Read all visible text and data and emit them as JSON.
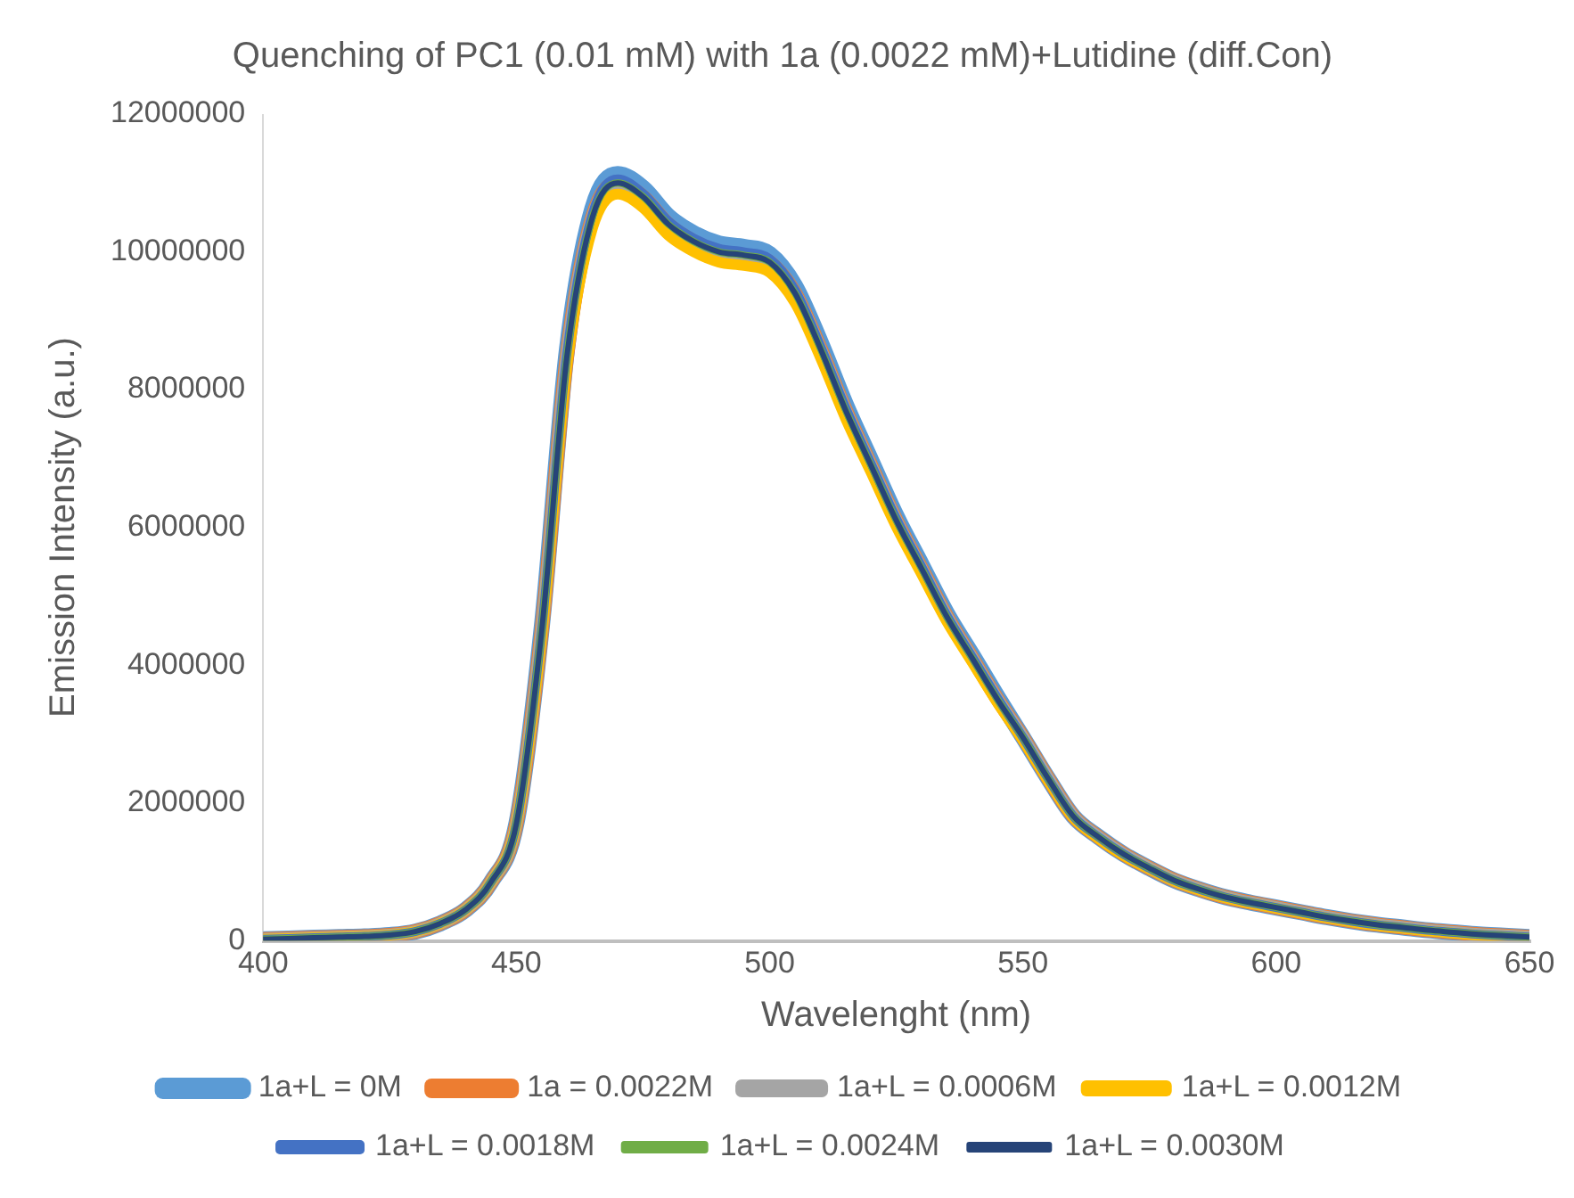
{
  "chart_data": {
    "type": "line",
    "title": "Quenching of PC1 (0.01 mM) with 1a (0.0022 mM)+Lutidine (diff.Con)",
    "xlabel": "Wavelenght (nm)",
    "ylabel": "Emission Intensity (a.u.)",
    "x": [
      400,
      405,
      410,
      415,
      420,
      425,
      430,
      435,
      440,
      445,
      450,
      455,
      460,
      465,
      470,
      475,
      480,
      485,
      490,
      495,
      500,
      505,
      510,
      515,
      520,
      525,
      530,
      535,
      540,
      545,
      550,
      555,
      560,
      565,
      570,
      575,
      580,
      585,
      590,
      595,
      600,
      605,
      610,
      615,
      620,
      625,
      630,
      635,
      640,
      645,
      650
    ],
    "xlim": [
      400,
      650
    ],
    "xticks": [
      400,
      450,
      500,
      550,
      600,
      650
    ],
    "ylim": [
      0,
      12000000
    ],
    "yticks": [
      0,
      2000000,
      4000000,
      6000000,
      8000000,
      10000000,
      12000000
    ],
    "grid": false,
    "legend": "bottom",
    "marker": "none",
    "line_style": "solid",
    "series": [
      {
        "name": "1a+L = 0M",
        "color": "#5b9bd5",
        "values": [
          20000,
          30000,
          40000,
          50000,
          60000,
          80000,
          130000,
          250000,
          450000,
          850000,
          1700000,
          4550000,
          8600000,
          10630000,
          11130000,
          10930000,
          10520000,
          10270000,
          10120000,
          10070000,
          9970000,
          9510000,
          8700000,
          7790000,
          6980000,
          6170000,
          5460000,
          4750000,
          4150000,
          3540000,
          2950000,
          2350000,
          1800000,
          1500000,
          1250000,
          1050000,
          870000,
          740000,
          630000,
          550000,
          480000,
          410000,
          340000,
          280000,
          230000,
          190000,
          150000,
          120000,
          90000,
          70000,
          50000
        ]
      },
      {
        "name": "1a = 0.0022M",
        "color": "#ed7d31",
        "values": [
          20000,
          30000,
          40000,
          50000,
          60000,
          80000,
          130000,
          250000,
          450000,
          850000,
          1700000,
          4500000,
          8500000,
          10500000,
          11000000,
          10800000,
          10400000,
          10150000,
          10000000,
          9950000,
          9850000,
          9400000,
          8600000,
          7700000,
          6900000,
          6100000,
          5400000,
          4700000,
          4100000,
          3500000,
          2950000,
          2350000,
          1800000,
          1500000,
          1250000,
          1050000,
          870000,
          740000,
          630000,
          550000,
          480000,
          410000,
          340000,
          280000,
          230000,
          190000,
          150000,
          120000,
          90000,
          70000,
          50000
        ]
      },
      {
        "name": "1a+L = 0.0006M",
        "color": "#a5a5a5",
        "values": [
          20000,
          30000,
          40000,
          50000,
          60000,
          80000,
          130000,
          250000,
          450000,
          850000,
          1700000,
          4500000,
          8500000,
          10500000,
          11000000,
          10800000,
          10400000,
          10150000,
          10000000,
          9950000,
          9850000,
          9400000,
          8600000,
          7700000,
          6900000,
          6100000,
          5400000,
          4700000,
          4100000,
          3500000,
          2950000,
          2350000,
          1800000,
          1500000,
          1250000,
          1050000,
          870000,
          740000,
          630000,
          550000,
          480000,
          410000,
          340000,
          280000,
          230000,
          190000,
          150000,
          120000,
          90000,
          70000,
          50000
        ]
      },
      {
        "name": "1a+L = 0.0012M",
        "color": "#ffc000",
        "values": [
          20000,
          30000,
          40000,
          50000,
          60000,
          80000,
          130000,
          250000,
          450000,
          850000,
          1700000,
          4430000,
          8370000,
          10340000,
          10840000,
          10640000,
          10240000,
          10000000,
          9850000,
          9800000,
          9700000,
          9260000,
          8470000,
          7580000,
          6800000,
          6010000,
          5320000,
          4630000,
          4040000,
          3450000,
          2910000,
          2320000,
          1780000,
          1480000,
          1230000,
          1040000,
          860000,
          730000,
          620000,
          540000,
          470000,
          400000,
          330000,
          270000,
          220000,
          180000,
          140000,
          110000,
          80000,
          60000,
          40000
        ]
      },
      {
        "name": "1a+L = 0.0018M",
        "color": "#4472c4",
        "values": [
          20000,
          30000,
          40000,
          50000,
          60000,
          80000,
          130000,
          250000,
          450000,
          850000,
          1700000,
          4520000,
          8540000,
          10550000,
          11060000,
          10850000,
          10450000,
          10200000,
          10050000,
          10000000,
          9900000,
          9450000,
          8640000,
          7740000,
          6930000,
          6130000,
          5430000,
          4720000,
          4120000,
          3520000,
          2950000,
          2350000,
          1800000,
          1500000,
          1250000,
          1050000,
          870000,
          740000,
          630000,
          550000,
          480000,
          410000,
          340000,
          280000,
          230000,
          190000,
          150000,
          120000,
          90000,
          70000,
          50000
        ]
      },
      {
        "name": "1a+L = 0.0024M",
        "color": "#70ad47",
        "values": [
          20000,
          30000,
          40000,
          50000,
          60000,
          80000,
          130000,
          250000,
          450000,
          850000,
          1700000,
          4500000,
          8500000,
          10500000,
          11000000,
          10800000,
          10400000,
          10150000,
          10000000,
          9950000,
          9850000,
          9400000,
          8600000,
          7700000,
          6900000,
          6100000,
          5400000,
          4700000,
          4100000,
          3500000,
          2950000,
          2350000,
          1800000,
          1500000,
          1250000,
          1050000,
          870000,
          740000,
          630000,
          550000,
          480000,
          410000,
          340000,
          280000,
          230000,
          190000,
          150000,
          120000,
          90000,
          70000,
          50000
        ]
      },
      {
        "name": "1a+L = 0.0030M",
        "color": "#264478",
        "values": [
          20000,
          30000,
          40000,
          50000,
          60000,
          80000,
          130000,
          250000,
          450000,
          850000,
          1700000,
          4500000,
          8500000,
          10500000,
          11000000,
          10800000,
          10400000,
          10150000,
          10000000,
          9950000,
          9850000,
          9400000,
          8600000,
          7700000,
          6900000,
          6100000,
          5400000,
          4700000,
          4100000,
          3500000,
          2950000,
          2350000,
          1800000,
          1500000,
          1250000,
          1050000,
          870000,
          740000,
          630000,
          550000,
          480000,
          410000,
          340000,
          280000,
          230000,
          190000,
          150000,
          120000,
          90000,
          70000,
          50000
        ]
      }
    ]
  }
}
